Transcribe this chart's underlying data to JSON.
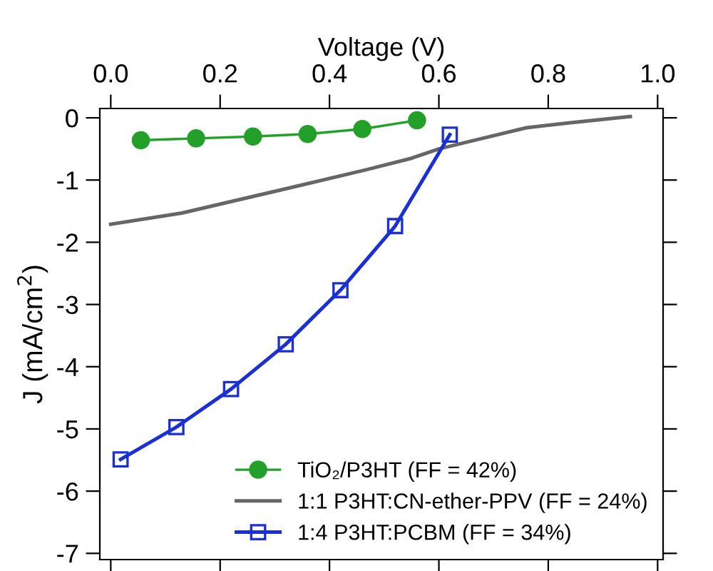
{
  "chart_data": {
    "type": "line",
    "xlabel": "Voltage (V)",
    "ylabel": "J (mA/cm$^{2}$)",
    "xlim": [
      -0.02,
      1.01
    ],
    "xticks": [
      {
        "value": 0,
        "label": "0.0"
      },
      {
        "value": 0.2,
        "label": "0.2"
      },
      {
        "value": 0.4,
        "label": "0.4"
      },
      {
        "value": 0.6,
        "label": "0.6"
      },
      {
        "value": 0.8,
        "label": "0.8"
      },
      {
        "value": 1.0,
        "label": "1.0"
      }
    ],
    "ylim": [
      -7.1,
      0.15
    ],
    "yticks": [
      0,
      -1,
      -2,
      -3,
      -4,
      -5,
      -6,
      -7
    ],
    "grid": false,
    "legend": "bottom right",
    "series": [
      {
        "name": "TiO₂/P3HT (FF = 42%)",
        "color": "#22a02a",
        "marker": "circle",
        "x": [
          0.055,
          0.156,
          0.26,
          0.36,
          0.46,
          0.56
        ],
        "values": [
          -0.36,
          -0.33,
          -0.3,
          -0.26,
          -0.18,
          -0.04
        ]
      },
      {
        "name": "1:1 P3HT:CN-ether-PPV (FF = 24%)",
        "color": "#666666",
        "marker": "none",
        "x": [
          0.0,
          0.13,
          0.32,
          0.46,
          0.55,
          0.6,
          0.67,
          0.76,
          0.84,
          0.95
        ],
        "values": [
          -1.71,
          -1.53,
          -1.14,
          -0.85,
          -0.65,
          -0.5,
          -0.35,
          -0.16,
          -0.08,
          0.02
        ]
      },
      {
        "name": "1:4 P3HT:PCBM (FF = 34%)",
        "color": "#1a2fd6",
        "marker": "square",
        "x": [
          0.018,
          0.12,
          0.22,
          0.32,
          0.42,
          0.52,
          0.62
        ],
        "values": [
          -5.49,
          -4.97,
          -4.36,
          -3.64,
          -2.77,
          -1.74,
          -0.27
        ]
      }
    ]
  }
}
